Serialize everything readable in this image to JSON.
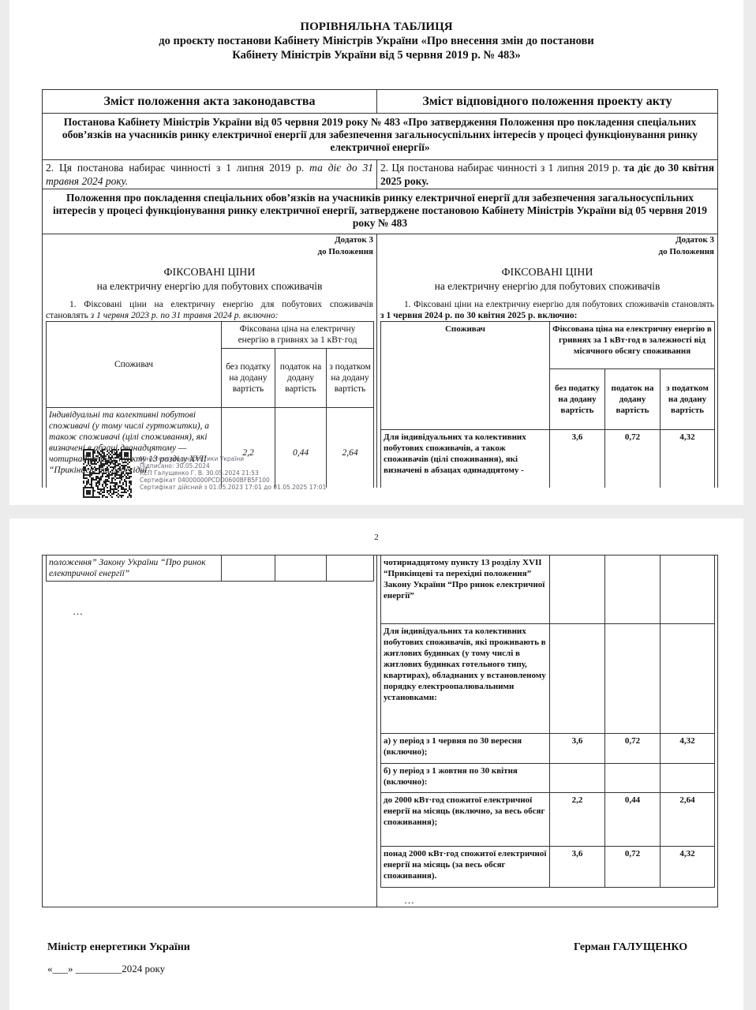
{
  "header": {
    "title": "ПОРІВНЯЛЬНА ТАБЛИЦЯ",
    "subtitle": [
      "до проєкту постанови Кабінету Міністрів України «Про внесення змін до постанови",
      "Кабінету Міністрів України від 5 червня 2019 р. № 483»"
    ]
  },
  "table": {
    "columns": [
      "Зміст положення акта законодавства",
      "Зміст відповідного положення проекту акту"
    ],
    "section1": "Постанова Кабінету Міністрів України від 05 червня 2019 року № 483 «Про затвердження Положення про покладення спеціальних обов’язків на учасників ринку електричної енергії для забезпечення загальносуспільних інтересів у процесі функціонування ринку електричної енергії»",
    "row1": {
      "left": {
        "text": "2. Ця постанова набирає чинності з 1 липня 2019 р.",
        "emphasis": "та діє до 31 травня 2024 року."
      },
      "right": {
        "text": "2. Ця постанова набирає чинності з 1 липня 2019 р.",
        "emphasis": "та діє до 30 квітня 2025 року."
      }
    },
    "section2": "Положення про покладення спеціальних обов’язків на учасників ринку електричної енергії для забезпечення загальносуспільних інтересів у процесі функціонування ринку електричної енергії, затверджене постановою Кабінету Міністрів України від 05 червня 2019 року № 483",
    "left": {
      "annex": "Додаток 3",
      "annex_to": "до Положення",
      "heading": "ФІКСОВАНІ ЦІНИ",
      "subheading": "на електричну енергію для побутових споживачів",
      "intro": "1. Фіксовані ціни на електричну енергію для побутових споживачів становлять",
      "intro_emphasis": "з 1 червня 2023 р. по 31 травня 2024 р. включно:",
      "consumer_header": "Споживач",
      "price_header": "Фіксована ціна на електричну енергію в гривнях за 1 кВт·год",
      "subheaders": [
        "без податку на додану вартість",
        "податок на додану вартість",
        "з податком на додану вартість"
      ],
      "row": {
        "text_page1": "Індивідуальні та колективні побутові споживачі (у тому числі гуртожитки), а також споживачі (цілі споживання), які визначені в абзаці дванадцятому — чотирнадцятому пункту 13 розділу XVII “Прикінцеві та перехідні",
        "text_page2": "положення” Закону України “Про ринок електричної енергії”",
        "values": [
          "2,2",
          "0,44",
          "2,64"
        ]
      },
      "ellipsis": "…"
    },
    "right": {
      "annex": "Додаток 3",
      "annex_to": "до Положення",
      "heading": "ФІКСОВАНІ ЦІНИ",
      "subheading": "на електричну енергію для побутових споживачів",
      "intro": "1. Фіксовані ціни на електричну енергію для побутових споживачів становлять",
      "intro_emphasis": "з 1 червня 2024 р. по 30 квітня 2025 р. включно:",
      "consumer_header": "Споживач",
      "price_header": "Фіксована ціна на електричну енергію в гривнях за 1 кВт·год в залежності від місячного обсягу споживання",
      "subheaders": [
        "без податку на додану вартість",
        "податок на додану вартість",
        "з податком на додану вартість"
      ],
      "row": {
        "text_page1": "Для індивідуальних та колективних побутових споживачів, а також споживачів (цілі споживання), які визначені в абзацах одинадцятому -",
        "text_page2": "чотирнадцятому пункту 13 розділу XVII “Прикінцеві та перехідні положення” Закону України “Про ринок електричної енергії”",
        "values": [
          "3,6",
          "0,72",
          "4,32"
        ]
      },
      "rows": [
        {
          "text": "Для індивідуальних та колективних побутових споживачів, які проживають в житлових будинках (у тому числі в житлових будинках готельного типу, квартирах), обладнаних у встановленому порядку електроопалювальними установками:",
          "values": []
        },
        {
          "text": "а) у період з 1 червня по 30 вересня (включно);",
          "values": [
            "3,6",
            "0,72",
            "4,32"
          ]
        },
        {
          "text": "б) у період з 1 жовтня по 30 квітня (включно):",
          "values": []
        },
        {
          "text": "до 2000 кВт·год спожитої електричної енергії на місяць (включно, за весь обсяг споживання);",
          "values": [
            "2,2",
            "0,44",
            "2,64"
          ]
        },
        {
          "text": "понад 2000 кВт·год спожитої електричної енергії на місяць (за весь обсяг споживання).",
          "values": [
            "3,6",
            "0,72",
            "4,32"
          ]
        }
      ],
      "ellipsis": "…"
    }
  },
  "stamp": [
    "Міністерство енергетики України",
    "Підписано: 30.05.2024",
    "КЕП Галущенко Г. В. 30.05.2024 21:53",
    "Сертифікат 04000000PCDD0600BFB5F100",
    "Сертифікат дійсний з 01.05.2023 17:01 до 01.05.2025 17:01"
  ],
  "page_number": "2",
  "footer": {
    "position": "Міністр енергетики України",
    "name": "Герман ГАЛУЩЕНКО",
    "date": "«___» _________2024 року"
  }
}
